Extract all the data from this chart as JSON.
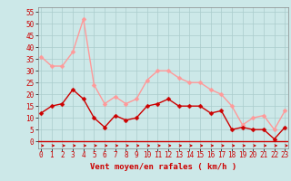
{
  "x": [
    0,
    1,
    2,
    3,
    4,
    5,
    6,
    7,
    8,
    9,
    10,
    11,
    12,
    13,
    14,
    15,
    16,
    17,
    18,
    19,
    20,
    21,
    22,
    23
  ],
  "wind_avg": [
    12,
    15,
    16,
    22,
    18,
    10,
    6,
    11,
    9,
    10,
    15,
    16,
    18,
    15,
    15,
    15,
    12,
    13,
    5,
    6,
    5,
    5,
    1,
    6
  ],
  "wind_gust": [
    36,
    32,
    32,
    38,
    52,
    24,
    16,
    19,
    16,
    18,
    26,
    30,
    30,
    27,
    25,
    25,
    22,
    20,
    15,
    7,
    10,
    11,
    5,
    13
  ],
  "wind_avg_color": "#cc0000",
  "wind_gust_color": "#ff9999",
  "background_color": "#cce8e8",
  "grid_color": "#aacccc",
  "xlabel": "Vent moyen/en rafales ( km/h )",
  "xlabel_color": "#cc0000",
  "ytick_labels": [
    "0",
    "5",
    "10",
    "15",
    "20",
    "25",
    "30",
    "35",
    "40",
    "45",
    "50",
    "55"
  ],
  "ytick_vals": [
    0,
    5,
    10,
    15,
    20,
    25,
    30,
    35,
    40,
    45,
    50,
    55
  ],
  "ylim": [
    -3,
    57
  ],
  "xlim": [
    -0.3,
    23.3
  ],
  "markersize": 2.5,
  "linewidth": 1.0
}
